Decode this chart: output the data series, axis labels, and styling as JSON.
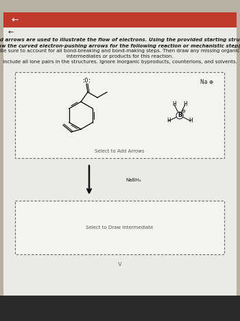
{
  "outer_bg": "#b8b0a0",
  "page_bg": "#e8e4de",
  "content_bg": "#eceae5",
  "white_box": "#f5f3f0",
  "nav_bar_color": "#c0392b",
  "text_color": "#1a1a1a",
  "light_text": "#444444",
  "dashed_color": "#666666",
  "arrow_color": "#111111",
  "title_lines": [
    "Curved arrows are used to illustrate the flow of electrons. Using the provided starting structure,",
    "draw the curved electron-pushing arrows for the following reaction or mechanistic step(s).",
    "Be sure to account for all bond-breaking and bond-making steps. Then draw any missing organic",
    "intermediates or products for this reaction.",
    "Include all lone pairs in the structures. Ignore inorganic byproducts, counterions, and solvents."
  ],
  "na_label": "Na ⊕",
  "select_arrows_label": "Select to Add Arrows",
  "nabh4_label": "NaBH₄",
  "select_intermediate_label": "Select to Draw Intermediate",
  "title_fontsize": 5.2,
  "label_fontsize": 5.0,
  "small_fontsize": 4.5
}
